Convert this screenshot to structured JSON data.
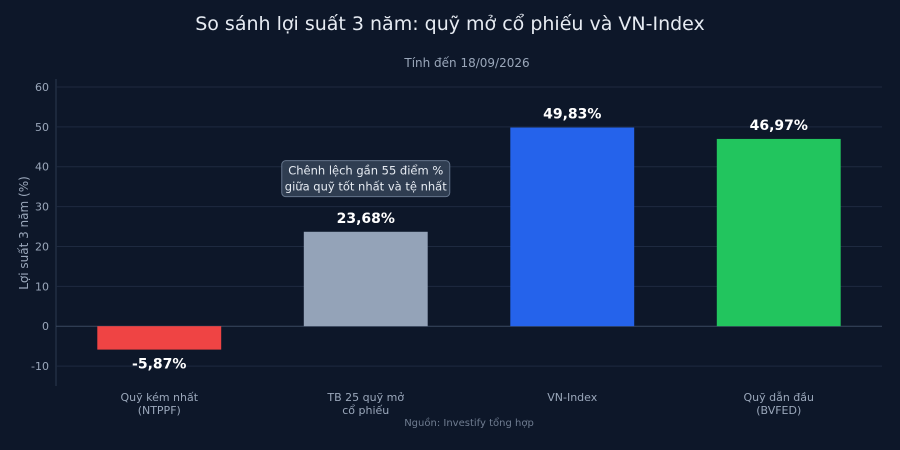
{
  "chart_data": {
    "type": "bar",
    "title": "So sánh lợi suất 3 năm: quỹ mở cổ phiếu và VN-Index",
    "subtitle": "Tính đến 18/09/2026",
    "ylabel": "Lợi suất 3 năm (%)",
    "ylim": [
      -15,
      62
    ],
    "yticks": [
      -10,
      0,
      10,
      20,
      30,
      40,
      50,
      60
    ],
    "grid": true,
    "categories": [
      [
        "Quỹ kém nhất",
        "(NTPPF)"
      ],
      [
        "TB 25 quỹ mở",
        "cổ phiếu"
      ],
      [
        "VN-Index"
      ],
      [
        "Quỹ dẫn đầu",
        "(BVFED)"
      ]
    ],
    "values": [
      -5.87,
      23.68,
      49.83,
      46.97
    ],
    "value_labels": [
      "-5,87%",
      "23,68%",
      "49,83%",
      "46,97%"
    ],
    "colors": [
      "#ef4444",
      "#94a3b8",
      "#2563eb",
      "#22c55e"
    ],
    "annotation": {
      "lines": [
        "Chênh lệch gần 55 điểm %",
        "giữa quỹ tốt nhất và tệ nhất"
      ],
      "category_index": 1,
      "y": 37
    },
    "source": "Nguồn: Investify tổng hợp"
  }
}
